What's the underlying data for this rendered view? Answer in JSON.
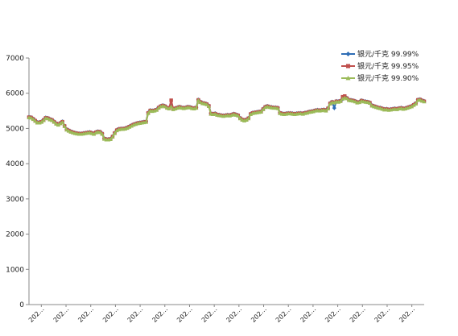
{
  "chart_data": {
    "type": "line",
    "title": "",
    "xlabel": "",
    "ylabel": "",
    "ylim": [
      0,
      7000
    ],
    "yticks": [
      0,
      1000,
      2000,
      3000,
      4000,
      5000,
      6000,
      7000
    ],
    "x_tick_labels": [
      "202…",
      "202…",
      "202…",
      "202…",
      "202…",
      "202…",
      "202…",
      "202…",
      "202…",
      "202…",
      "202…",
      "202…",
      "202…",
      "202…",
      "202…",
      "202…"
    ],
    "grid": false,
    "legend_position": "top-right",
    "series": [
      {
        "name": "银元/千克 99.99%",
        "color": "#2e6db5",
        "marker": "diamond",
        "values": [
          5330,
          5320,
          5280,
          5230,
          5180,
          5180,
          5200,
          5250,
          5310,
          5300,
          5270,
          5250,
          5200,
          5150,
          5120,
          5160,
          5200,
          5080,
          4980,
          4950,
          4920,
          4900,
          4880,
          4870,
          4860,
          4860,
          4870,
          4880,
          4890,
          4900,
          4880,
          4860,
          4900,
          4920,
          4910,
          4860,
          4720,
          4700,
          4700,
          4710,
          4780,
          4880,
          4960,
          4990,
          5000,
          5000,
          5010,
          5030,
          5060,
          5090,
          5120,
          5140,
          5160,
          5170,
          5180,
          5190,
          5200,
          5450,
          5520,
          5510,
          5520,
          5540,
          5600,
          5640,
          5660,
          5640,
          5600,
          5580,
          5640,
          5560,
          5580,
          5600,
          5620,
          5600,
          5590,
          5600,
          5620,
          5610,
          5590,
          5580,
          5600,
          5820,
          5760,
          5730,
          5720,
          5700,
          5650,
          5430,
          5420,
          5430,
          5400,
          5390,
          5380,
          5370,
          5380,
          5390,
          5380,
          5400,
          5420,
          5400,
          5380,
          5300,
          5260,
          5240,
          5260,
          5300,
          5420,
          5450,
          5460,
          5470,
          5480,
          5490,
          5560,
          5620,
          5640,
          5620,
          5610,
          5600,
          5600,
          5590,
          5450,
          5430,
          5420,
          5430,
          5440,
          5440,
          5430,
          5420,
          5430,
          5440,
          5440,
          5430,
          5450,
          5460,
          5480,
          5490,
          5500,
          5520,
          5530,
          5520,
          5530,
          5540,
          5520,
          5580,
          5720,
          5760,
          5580,
          5780,
          5770,
          5790,
          5830,
          5880,
          5870,
          5820,
          5810,
          5800,
          5780,
          5750,
          5760,
          5800,
          5780,
          5770,
          5760,
          5740,
          5660,
          5640,
          5620,
          5600,
          5590,
          5570,
          5550,
          5560,
          5540,
          5550,
          5560,
          5570,
          5560,
          5580,
          5590,
          5570,
          5580,
          5600,
          5620,
          5640,
          5680,
          5720,
          5820,
          5830,
          5800,
          5780
        ]
      },
      {
        "name": "银元/千克 99.95%",
        "color": "#c0504d",
        "marker": "square",
        "values": [
          5320,
          5310,
          5270,
          5220,
          5170,
          5170,
          5190,
          5240,
          5300,
          5290,
          5260,
          5240,
          5190,
          5140,
          5110,
          5150,
          5190,
          5070,
          4970,
          4940,
          4910,
          4890,
          4870,
          4860,
          4850,
          4850,
          4860,
          4870,
          4880,
          4890,
          4870,
          4850,
          4890,
          4910,
          4900,
          4850,
          4710,
          4690,
          4690,
          4700,
          4770,
          4870,
          4950,
          4980,
          4990,
          4990,
          5000,
          5020,
          5050,
          5080,
          5110,
          5130,
          5150,
          5160,
          5170,
          5180,
          5190,
          5440,
          5510,
          5500,
          5510,
          5530,
          5590,
          5630,
          5650,
          5630,
          5590,
          5570,
          5800,
          5550,
          5570,
          5590,
          5610,
          5590,
          5580,
          5590,
          5610,
          5600,
          5580,
          5570,
          5590,
          5810,
          5750,
          5720,
          5710,
          5690,
          5640,
          5420,
          5410,
          5420,
          5390,
          5380,
          5370,
          5360,
          5370,
          5380,
          5370,
          5390,
          5410,
          5390,
          5370,
          5290,
          5250,
          5230,
          5250,
          5290,
          5410,
          5440,
          5450,
          5460,
          5470,
          5480,
          5550,
          5610,
          5630,
          5610,
          5600,
          5590,
          5590,
          5580,
          5440,
          5420,
          5410,
          5420,
          5430,
          5430,
          5420,
          5410,
          5420,
          5430,
          5430,
          5420,
          5440,
          5450,
          5470,
          5480,
          5490,
          5510,
          5520,
          5510,
          5520,
          5530,
          5510,
          5570,
          5710,
          5750,
          5740,
          5770,
          5760,
          5780,
          5900,
          5920,
          5860,
          5810,
          5800,
          5790,
          5770,
          5740,
          5750,
          5790,
          5770,
          5760,
          5750,
          5730,
          5650,
          5630,
          5610,
          5590,
          5580,
          5560,
          5540,
          5550,
          5530,
          5540,
          5550,
          5560,
          5550,
          5570,
          5580,
          5560,
          5570,
          5590,
          5610,
          5630,
          5670,
          5710,
          5810,
          5820,
          5790,
          5770
        ]
      },
      {
        "name": "银元/千克 99.90%",
        "color": "#9bbb59",
        "marker": "triangle",
        "values": [
          5310,
          5300,
          5260,
          5210,
          5160,
          5160,
          5180,
          5230,
          5290,
          5280,
          5250,
          5230,
          5180,
          5130,
          5100,
          5140,
          5180,
          5060,
          4960,
          4930,
          4900,
          4880,
          4860,
          4850,
          4840,
          4840,
          4850,
          4860,
          4870,
          4880,
          4860,
          4840,
          4880,
          4900,
          4890,
          4840,
          4700,
          4680,
          4680,
          4690,
          4760,
          4860,
          4940,
          4970,
          4980,
          4980,
          4990,
          5010,
          5040,
          5070,
          5100,
          5120,
          5140,
          5150,
          5160,
          5170,
          5180,
          5430,
          5500,
          5490,
          5500,
          5520,
          5580,
          5620,
          5640,
          5620,
          5580,
          5560,
          5620,
          5540,
          5560,
          5580,
          5600,
          5580,
          5570,
          5580,
          5600,
          5590,
          5570,
          5560,
          5580,
          5800,
          5740,
          5710,
          5700,
          5680,
          5630,
          5410,
          5400,
          5410,
          5380,
          5370,
          5360,
          5350,
          5360,
          5370,
          5360,
          5380,
          5400,
          5380,
          5360,
          5280,
          5240,
          5220,
          5240,
          5280,
          5400,
          5430,
          5440,
          5450,
          5460,
          5470,
          5540,
          5600,
          5620,
          5600,
          5590,
          5580,
          5580,
          5570,
          5430,
          5410,
          5400,
          5410,
          5420,
          5420,
          5410,
          5400,
          5410,
          5420,
          5420,
          5410,
          5430,
          5440,
          5460,
          5470,
          5480,
          5500,
          5510,
          5500,
          5510,
          5520,
          5500,
          5560,
          5700,
          5740,
          5730,
          5760,
          5750,
          5770,
          5840,
          5870,
          5850,
          5800,
          5790,
          5780,
          5760,
          5730,
          5740,
          5780,
          5760,
          5750,
          5740,
          5720,
          5640,
          5620,
          5600,
          5580,
          5570,
          5550,
          5530,
          5540,
          5520,
          5530,
          5540,
          5550,
          5540,
          5560,
          5570,
          5550,
          5560,
          5580,
          5600,
          5620,
          5660,
          5700,
          5800,
          5810,
          5780,
          5760
        ]
      }
    ]
  }
}
